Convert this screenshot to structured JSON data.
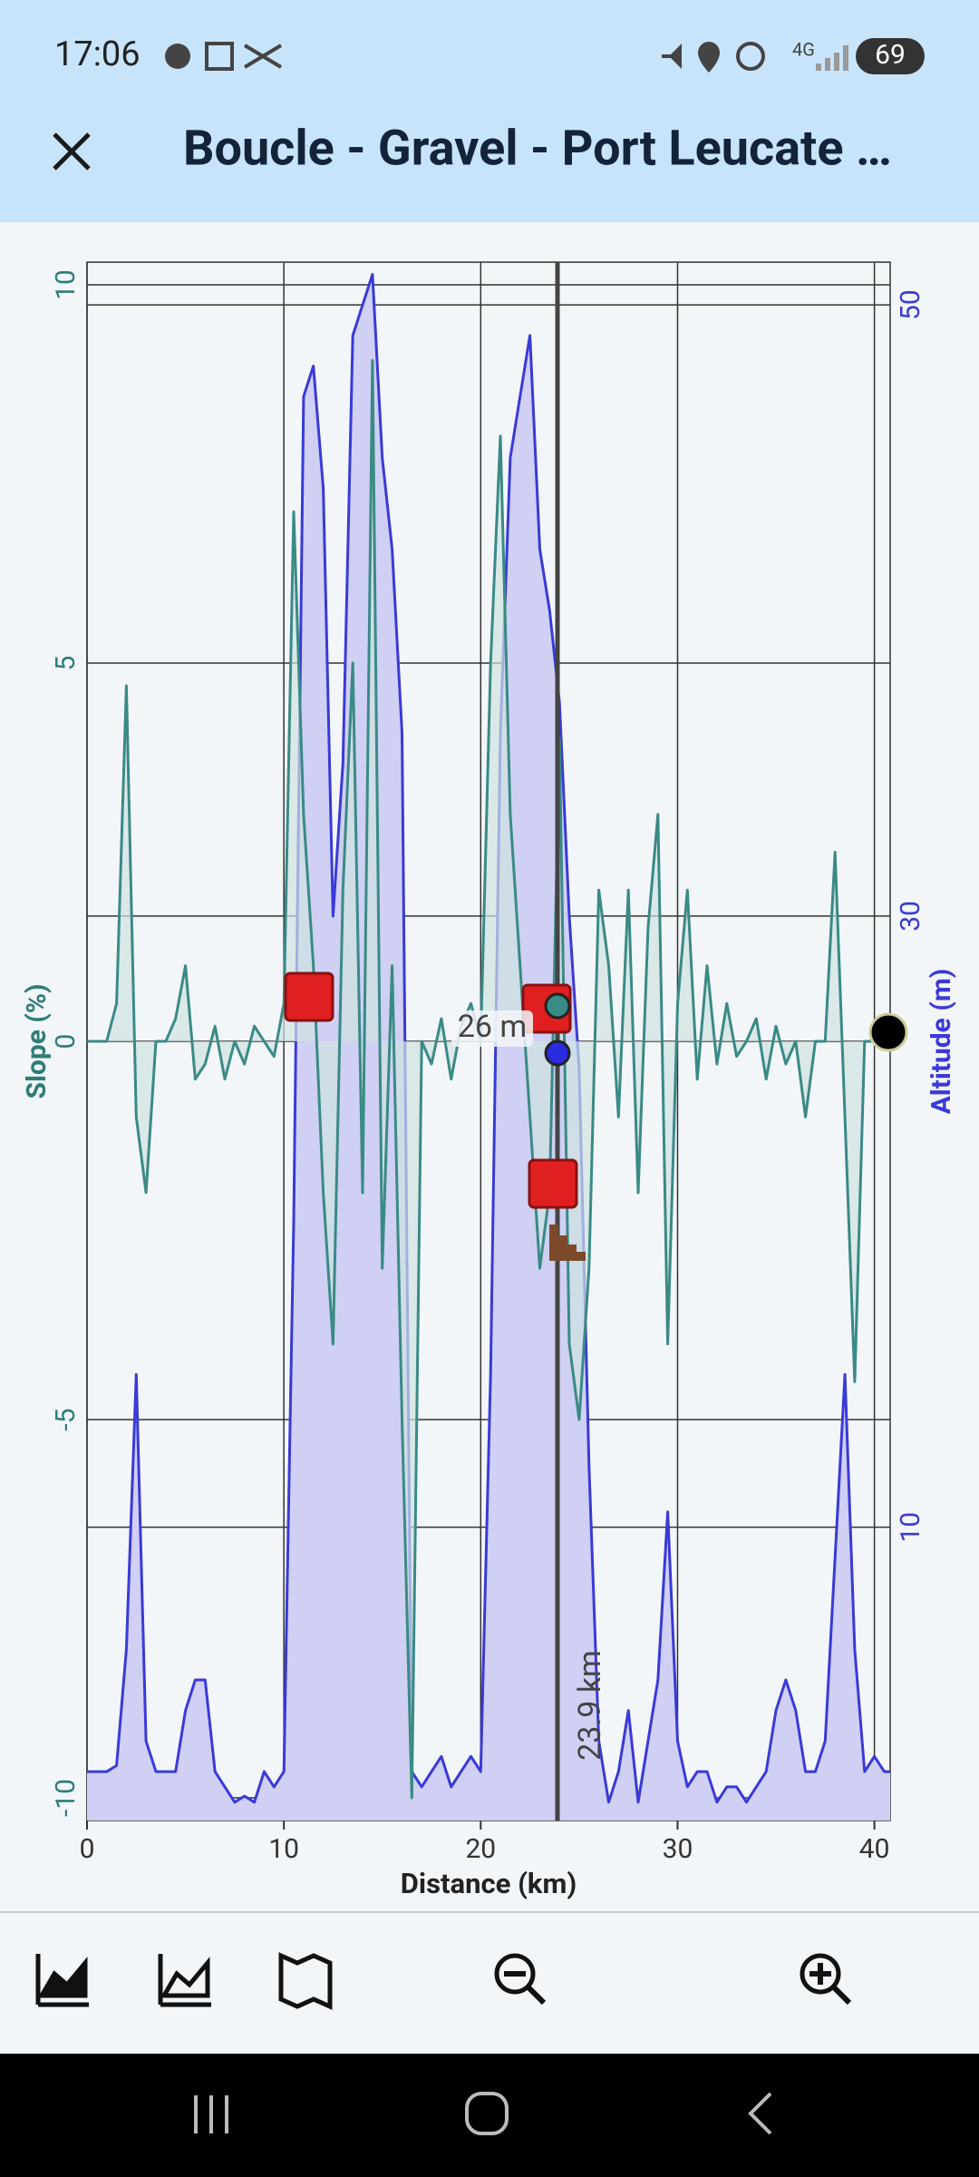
{
  "status_bar": {
    "time": "17:06",
    "battery": "69"
  },
  "app_bar": {
    "title": "Boucle - Gravel - Port Leucate …"
  },
  "chart_data": {
    "type": "line",
    "xlabel": "Distance (km)",
    "ylabel": "Slope (%)",
    "y2label": "Altitude (m)",
    "x": [
      0,
      0.5,
      1,
      1.5,
      2,
      2.5,
      3,
      3.5,
      4,
      4.5,
      5,
      5.5,
      6,
      6.5,
      7,
      7.5,
      8,
      8.5,
      9,
      9.5,
      10,
      10.5,
      11,
      11.5,
      12,
      12.5,
      13,
      13.5,
      14,
      14.5,
      15,
      15.5,
      16,
      16.5,
      17,
      17.5,
      18,
      18.5,
      19,
      19.5,
      20,
      20.5,
      21,
      21.5,
      22,
      22.5,
      23,
      23.5,
      24,
      24.5,
      25,
      25.5,
      26,
      26.5,
      27,
      27.5,
      28,
      28.5,
      29,
      29.5,
      30,
      30.5,
      31,
      31.5,
      32,
      32.5,
      33,
      33.5,
      34,
      34.5,
      35,
      35.5,
      36,
      36.5,
      37,
      37.5,
      38,
      38.5,
      39,
      39.5,
      40,
      40.5,
      40.8
    ],
    "xlim": [
      0,
      40.8
    ],
    "xticks": [
      0,
      10,
      20,
      30,
      40
    ],
    "ylim": [
      -10.3,
      10.3
    ],
    "yticks": [
      -10,
      -5,
      0,
      5,
      10
    ],
    "y2lim": [
      0.4,
      51.4
    ],
    "y2ticks": [
      10,
      30,
      50
    ],
    "grid": true,
    "series": [
      {
        "color": "#3a3ad8",
        "fill": "#cfd0f3",
        "axis": "y2",
        "values": [
          2,
          2,
          2,
          2.2,
          6,
          15,
          3,
          2,
          2,
          2,
          4,
          5,
          5,
          2,
          1.5,
          1,
          1.2,
          1,
          2,
          1.5,
          2,
          20,
          47,
          48,
          44,
          30,
          35,
          49,
          50,
          51,
          45,
          42,
          36,
          2,
          1.5,
          2,
          2.5,
          1.5,
          2,
          2.5,
          2,
          15,
          36,
          45,
          47,
          49,
          42,
          40,
          37,
          30,
          25,
          12,
          3,
          1,
          2,
          4,
          1,
          3,
          5,
          10.5,
          3,
          1.5,
          2,
          2,
          1,
          1.5,
          1.5,
          1,
          1.5,
          2,
          4,
          5,
          4,
          2,
          2,
          3,
          9,
          15,
          6,
          2,
          2.5,
          2,
          2
        ]
      },
      {
        "color": "#3a8a86",
        "fill": "#cfe3e1",
        "values": [
          0,
          0,
          0,
          0.5,
          4.7,
          -1,
          -2,
          0,
          0,
          0.3,
          1,
          -0.5,
          -0.3,
          0.2,
          -0.5,
          0,
          -0.3,
          0.2,
          0,
          -0.2,
          0.5,
          7,
          3,
          1,
          -2,
          -4,
          2,
          5,
          -2,
          9,
          -3,
          1,
          -5,
          -10,
          0,
          -0.3,
          0.3,
          -0.5,
          0.2,
          0.5,
          0,
          5,
          8,
          3,
          1,
          -1,
          -3,
          -2,
          4,
          -4,
          -5,
          -3,
          2,
          1,
          -1,
          2,
          -2,
          1.5,
          3,
          -4,
          0.5,
          2,
          -0.5,
          1,
          -0.3,
          0.5,
          -0.2,
          0,
          0.3,
          -0.5,
          0.2,
          -0.3,
          0,
          -1,
          0,
          0,
          2.5,
          -1,
          -4.5,
          0,
          0,
          0,
          0
        ]
      }
    ],
    "cursor": {
      "x": 23.9,
      "label": "23.9 km"
    },
    "annotations": [
      "26 m"
    ]
  }
}
